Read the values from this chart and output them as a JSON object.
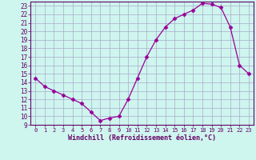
{
  "x": [
    0,
    1,
    2,
    3,
    4,
    5,
    6,
    7,
    8,
    9,
    10,
    11,
    12,
    13,
    14,
    15,
    16,
    17,
    18,
    19,
    20,
    21,
    22,
    23
  ],
  "y": [
    14.5,
    13.5,
    13.0,
    12.5,
    12.0,
    11.5,
    10.5,
    9.5,
    9.8,
    10.0,
    12.0,
    14.5,
    17.0,
    19.0,
    20.5,
    21.5,
    22.0,
    22.5,
    23.3,
    23.2,
    22.8,
    20.5,
    16.0,
    15.0
  ],
  "line_color": "#990099",
  "marker": "D",
  "marker_size": 2.5,
  "bg_color": "#cef5ee",
  "grid_color": "#aaaacc",
  "xlabel": "Windchill (Refroidissement éolien,°C)",
  "xlabel_color": "#660066",
  "ylim": [
    9,
    23.5
  ],
  "xlim": [
    -0.5,
    23.5
  ],
  "yticks": [
    9,
    10,
    11,
    12,
    13,
    14,
    15,
    16,
    17,
    18,
    19,
    20,
    21,
    22,
    23
  ],
  "xticks": [
    0,
    1,
    2,
    3,
    4,
    5,
    6,
    7,
    8,
    9,
    10,
    11,
    12,
    13,
    14,
    15,
    16,
    17,
    18,
    19,
    20,
    21,
    22,
    23
  ],
  "tick_color": "#660066",
  "spine_color": "#660066"
}
